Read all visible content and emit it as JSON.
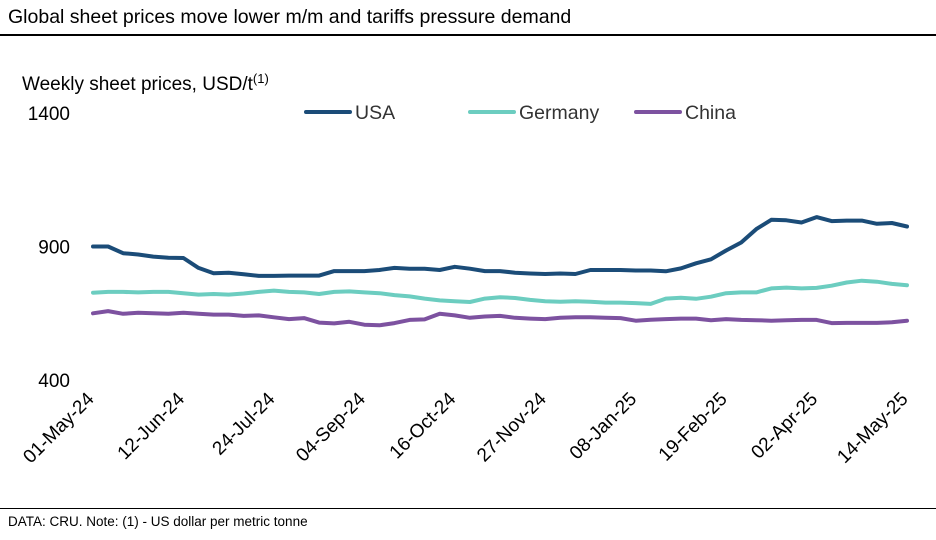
{
  "title": "Global sheet prices move lower m/m and tariffs pressure demand",
  "footer": "DATA: CRU.  Note: (1) - US dollar per metric tonne",
  "colors": {
    "USA": "#1b4c78",
    "Germany": "#6ccdc0",
    "China": "#7d52a0"
  },
  "chart_data": {
    "type": "line",
    "ylabel": "Weekly sheet prices, USD/t",
    "ylabel_superscript": "(1)",
    "xlabel": "",
    "ylim": [
      400,
      1400
    ],
    "yticks": [
      400,
      900,
      1400
    ],
    "xtick_labels": [
      "01-May-24",
      "12-Jun-24",
      "24-Jul-24",
      "04-Sep-24",
      "16-Oct-24",
      "27-Nov-24",
      "08-Jan-25",
      "19-Feb-25",
      "02-Apr-25",
      "14-May-25"
    ],
    "legend": [
      "USA",
      "Germany",
      "China"
    ],
    "series": [
      {
        "name": "USA",
        "values": [
          900,
          900,
          875,
          870,
          862,
          858,
          857,
          820,
          800,
          802,
          796,
          790,
          790,
          791,
          791,
          791,
          808,
          808,
          808,
          812,
          820,
          817,
          817,
          812,
          824,
          817,
          808,
          808,
          802,
          799,
          797,
          799,
          797,
          812,
          812,
          812,
          810,
          810,
          807,
          818,
          837,
          852,
          885,
          915,
          965,
          1000,
          998,
          990,
          1010,
          995,
          997,
          997,
          985,
          988,
          975
        ]
      },
      {
        "name": "Germany",
        "values": [
          727,
          730,
          730,
          728,
          730,
          730,
          725,
          720,
          722,
          720,
          724,
          730,
          735,
          730,
          728,
          722,
          730,
          732,
          728,
          725,
          718,
          713,
          705,
          698,
          695,
          692,
          705,
          710,
          707,
          700,
          695,
          693,
          695,
          693,
          690,
          690,
          688,
          685,
          705,
          708,
          704,
          712,
          725,
          728,
          728,
          743,
          746,
          743,
          745,
          753,
          765,
          772,
          768,
          760,
          755
        ]
      },
      {
        "name": "China",
        "values": [
          650,
          658,
          648,
          652,
          650,
          648,
          652,
          648,
          645,
          645,
          640,
          642,
          635,
          628,
          632,
          615,
          612,
          618,
          607,
          605,
          613,
          625,
          627,
          648,
          642,
          633,
          638,
          640,
          633,
          630,
          628,
          633,
          635,
          635,
          633,
          632,
          622,
          626,
          628,
          630,
          630,
          624,
          628,
          625,
          624,
          622,
          624,
          625,
          625,
          613,
          614,
          614,
          614,
          616,
          622
        ]
      }
    ]
  }
}
